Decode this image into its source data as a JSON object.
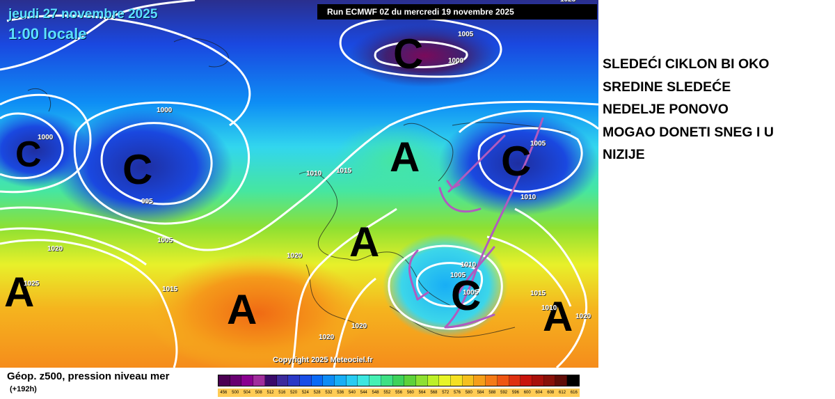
{
  "header": {
    "date": "jeudi 27 novembre 2025",
    "time": "1:00 locale",
    "run": "Run ECMWF 0Z du mercredi 19 novembre 2025",
    "copyright": "Copyright 2025 Meteociel.fr"
  },
  "systems": {
    "low_arctic": "C",
    "low_iceland_w": "C",
    "low_iceland": "C",
    "low_russia": "C",
    "low_balkans": "C",
    "high_scandinavia": "A",
    "high_central_europe": "A",
    "high_atlantic_w": "A",
    "high_azores": "A",
    "high_east": "A"
  },
  "isobars": {
    "top_right": "1025",
    "arctic_outer": "1005",
    "arctic_inner": "1000",
    "iceland_w": "1000",
    "iceland_n": "1000",
    "iceland_center": "995",
    "north_sea_a": "1010",
    "north_sea_b": "1015",
    "russia_outer": "1005",
    "russia_inner": "1010",
    "atlantic_w": "1020",
    "atlantic_mid": "1005",
    "bay_biscay": "1020",
    "atlantic_w2": "1025",
    "atlantic_s": "1015",
    "balkans_a": "1010",
    "balkans_b": "1005",
    "balkans_c": "1005",
    "black_sea": "1015",
    "east_a": "1020",
    "east_b": "1010",
    "med_a": "1020",
    "med_b": "1020"
  },
  "note": {
    "lines": [
      "SLEDEĆI CIKLON BI OKO",
      "SREDINE SLEDEĆE",
      "NEDELJE PONOVO",
      "MOGAO DONETI SNEG I U",
      "NIZIJE"
    ]
  },
  "legend": {
    "title": "Géop. z500, pression niveau mer",
    "subtitle": "(+192h)",
    "values": [
      "456",
      "500",
      "504",
      "508",
      "512",
      "516",
      "520",
      "524",
      "528",
      "532",
      "536",
      "540",
      "544",
      "548",
      "552",
      "556",
      "560",
      "564",
      "568",
      "572",
      "576",
      "580",
      "584",
      "588",
      "592",
      "596",
      "600",
      "604",
      "608",
      "612",
      "616"
    ],
    "colors": [
      "#4b0052",
      "#680070",
      "#8a008f",
      "#a02d9c",
      "#3a0a6a",
      "#3c2a9c",
      "#2b38c6",
      "#1a4ee6",
      "#0a6af5",
      "#0e8cf5",
      "#18aef5",
      "#28cbf2",
      "#3ce6e0",
      "#46f0b4",
      "#3ee084",
      "#3ed25a",
      "#5ed23a",
      "#8ee032",
      "#bdf028",
      "#e8f528",
      "#f5e022",
      "#f5c01e",
      "#f59e1a",
      "#f57a16",
      "#ee5512",
      "#de3010",
      "#c8140c",
      "#a8100a",
      "#881008",
      "#600c06",
      "#000000"
    ]
  },
  "colors": {
    "isobar": "#ffffff",
    "annotation_arrow": "#b05bbf",
    "header_text": "#5ce0ff"
  }
}
